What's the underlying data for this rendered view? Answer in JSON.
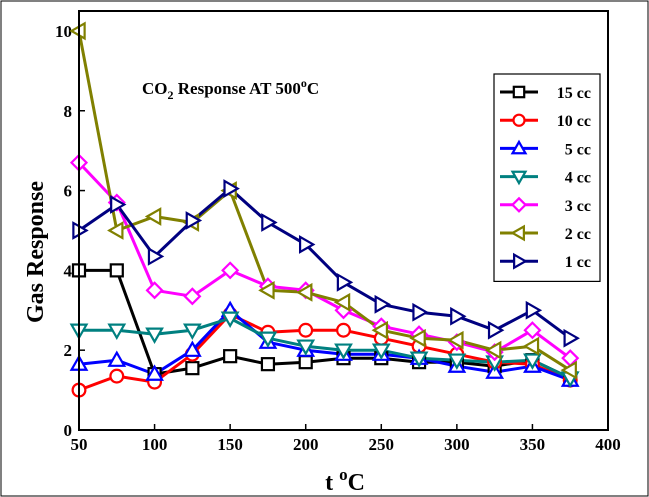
{
  "chart_data": {
    "type": "line",
    "annotation": {
      "prefix": "CO",
      "subscript": "2",
      "middle": " Response AT 500",
      "superscript": "o",
      "suffix": "C"
    },
    "xlabel": {
      "main": "t ",
      "superscript": "o",
      "suffix": "C"
    },
    "ylabel": "Gas Response",
    "xlim": [
      50,
      400
    ],
    "ylim": [
      0,
      10.5
    ],
    "xticks": [
      "50",
      "100",
      "150",
      "200",
      "250",
      "300",
      "350",
      "400"
    ],
    "yticks": [
      "0",
      "2",
      "4",
      "6",
      "8",
      "10"
    ],
    "legend_position": "top-right",
    "x": [
      50,
      75,
      100,
      125,
      150,
      175,
      200,
      225,
      250,
      275,
      300,
      325,
      350,
      375
    ],
    "series": [
      {
        "name": "15 cc",
        "color": "#000000",
        "marker": "square",
        "values": [
          4.0,
          4.0,
          1.4,
          1.55,
          1.85,
          1.65,
          1.7,
          1.8,
          1.8,
          1.7,
          1.7,
          1.6,
          1.75,
          1.3
        ]
      },
      {
        "name": "10 cc",
        "color": "#ff0000",
        "marker": "circle",
        "values": [
          1.0,
          1.35,
          1.2,
          1.9,
          2.9,
          2.45,
          2.5,
          2.5,
          2.3,
          2.1,
          1.9,
          1.7,
          1.65,
          1.25
        ]
      },
      {
        "name": "5 cc",
        "color": "#0000ff",
        "marker": "triangle-up",
        "values": [
          1.65,
          1.75,
          1.4,
          2.0,
          3.0,
          2.2,
          2.0,
          1.9,
          1.9,
          1.8,
          1.6,
          1.45,
          1.6,
          1.25
        ]
      },
      {
        "name": "4 cc",
        "color": "#008080",
        "marker": "triangle-down",
        "values": [
          2.5,
          2.5,
          2.4,
          2.5,
          2.8,
          2.3,
          2.1,
          2.0,
          2.0,
          1.8,
          1.75,
          1.7,
          1.75,
          1.3
        ]
      },
      {
        "name": "3 cc",
        "color": "#ff00ff",
        "marker": "diamond",
        "values": [
          6.7,
          5.7,
          3.5,
          3.35,
          4.0,
          3.6,
          3.5,
          3.0,
          2.6,
          2.4,
          2.2,
          1.95,
          2.5,
          1.8
        ]
      },
      {
        "name": "2 cc",
        "color": "#808000",
        "marker": "triangle-left",
        "values": [
          10.0,
          5.0,
          5.35,
          5.2,
          6.0,
          3.5,
          3.45,
          3.2,
          2.5,
          2.3,
          2.25,
          2.0,
          2.1,
          1.5
        ]
      },
      {
        "name": "1 cc",
        "color": "#000080",
        "marker": "triangle-right",
        "values": [
          5.0,
          5.65,
          4.35,
          5.25,
          6.05,
          5.2,
          4.65,
          3.7,
          3.15,
          2.95,
          2.85,
          2.5,
          3.0,
          2.3
        ]
      }
    ]
  }
}
